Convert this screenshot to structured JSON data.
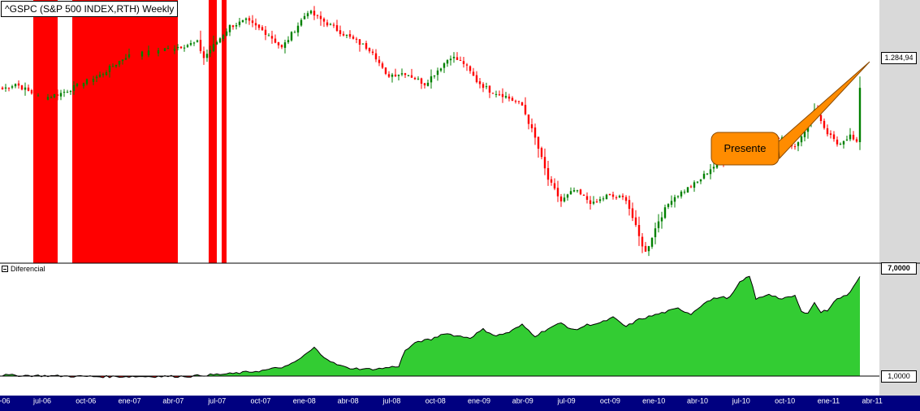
{
  "header": {
    "title": "^GSPC (S&P 500 INDEX,RTH) Weekly"
  },
  "callout": {
    "label": "Presente",
    "color": "#ff8c00"
  },
  "price_panel": {
    "last_price_label": "1.284,94"
  },
  "sub_panel": {
    "name": "Diferencial",
    "top_label": "7,0000",
    "bottom_label": "1,0000"
  },
  "time_axis": {
    "labels": [
      "-06",
      "jul-06",
      "oct-06",
      "ene-07",
      "abr-07",
      "jul-07",
      "oct-07",
      "ene-08",
      "abr-08",
      "jul-08",
      "oct-08",
      "ene-09",
      "abr-09",
      "jul-09",
      "oct-09",
      "ene-10",
      "abr-10",
      "jul-10",
      "oct-10",
      "ene-11",
      "abr-11"
    ]
  },
  "colors": {
    "up": "#008000",
    "down": "#ff0000",
    "area": "#33cc33",
    "axis_bar": "#000080",
    "right_strip": "#d9d9d9",
    "signal": "#ff0000"
  },
  "chart_data": [
    {
      "type": "candlestick",
      "title": "^GSPC (S&P 500 INDEX,RTH) Weekly",
      "x_start": "2006-04",
      "weeks": 265,
      "ylim": [
        650,
        1600
      ],
      "last_value": 1284.94,
      "anchors": [
        [
          0,
          1280
        ],
        [
          4,
          1300
        ],
        [
          12,
          1245
        ],
        [
          18,
          1265
        ],
        [
          30,
          1330
        ],
        [
          38,
          1400
        ],
        [
          48,
          1420
        ],
        [
          60,
          1450
        ],
        [
          62,
          1395
        ],
        [
          70,
          1510
        ],
        [
          75,
          1530
        ],
        [
          82,
          1480
        ],
        [
          86,
          1430
        ],
        [
          94,
          1565
        ],
        [
          100,
          1520
        ],
        [
          106,
          1475
        ],
        [
          114,
          1420
        ],
        [
          118,
          1330
        ],
        [
          124,
          1340
        ],
        [
          130,
          1300
        ],
        [
          138,
          1400
        ],
        [
          142,
          1375
        ],
        [
          146,
          1310
        ],
        [
          150,
          1275
        ],
        [
          154,
          1260
        ],
        [
          160,
          1220
        ],
        [
          164,
          1100
        ],
        [
          168,
          950
        ],
        [
          172,
          870
        ],
        [
          176,
          910
        ],
        [
          182,
          860
        ],
        [
          186,
          890
        ],
        [
          192,
          880
        ],
        [
          196,
          740
        ],
        [
          198,
          683
        ],
        [
          202,
          800
        ],
        [
          206,
          880
        ],
        [
          210,
          910
        ],
        [
          214,
          940
        ],
        [
          218,
          990
        ],
        [
          222,
          1020
        ],
        [
          226,
          1040
        ],
        [
          230,
          1060
        ],
        [
          236,
          1100
        ],
        [
          240,
          1110
        ],
        [
          244,
          1070
        ],
        [
          248,
          1150
        ],
        [
          250,
          1210
        ],
        [
          253,
          1130
        ],
        [
          257,
          1080
        ],
        [
          261,
          1110
        ],
        [
          263,
          1080
        ]
      ],
      "signal_zones_weeks": [
        [
          10,
          17
        ],
        [
          22,
          54
        ],
        [
          64,
          66
        ],
        [
          68,
          69
        ]
      ]
    },
    {
      "type": "area",
      "name": "Diferencial",
      "ylim": [
        1,
        7
      ],
      "anchors": [
        [
          0,
          1.05
        ],
        [
          30,
          0.97
        ],
        [
          58,
          0.99
        ],
        [
          62,
          1.05
        ],
        [
          70,
          1.12
        ],
        [
          80,
          1.3
        ],
        [
          88,
          1.55
        ],
        [
          92,
          2.0
        ],
        [
          96,
          2.55
        ],
        [
          98,
          2.2
        ],
        [
          102,
          1.7
        ],
        [
          106,
          1.45
        ],
        [
          112,
          1.38
        ],
        [
          116,
          1.4
        ],
        [
          122,
          1.55
        ],
        [
          124,
          2.4
        ],
        [
          128,
          2.9
        ],
        [
          132,
          3.0
        ],
        [
          136,
          3.35
        ],
        [
          140,
          3.2
        ],
        [
          144,
          3.1
        ],
        [
          148,
          3.55
        ],
        [
          152,
          3.2
        ],
        [
          156,
          3.4
        ],
        [
          160,
          3.8
        ],
        [
          164,
          3.2
        ],
        [
          168,
          3.6
        ],
        [
          172,
          3.9
        ],
        [
          176,
          3.5
        ],
        [
          180,
          3.8
        ],
        [
          184,
          3.9
        ],
        [
          188,
          4.2
        ],
        [
          192,
          3.7
        ],
        [
          196,
          4.1
        ],
        [
          200,
          4.3
        ],
        [
          204,
          4.5
        ],
        [
          208,
          4.7
        ],
        [
          212,
          4.4
        ],
        [
          216,
          5.0
        ],
        [
          220,
          5.3
        ],
        [
          224,
          5.3
        ],
        [
          227,
          6.1
        ],
        [
          230,
          6.5
        ],
        [
          232,
          5.2
        ],
        [
          236,
          5.5
        ],
        [
          240,
          5.2
        ],
        [
          244,
          5.4
        ],
        [
          246,
          4.5
        ],
        [
          248,
          4.5
        ],
        [
          250,
          5.0
        ],
        [
          252,
          4.5
        ],
        [
          254,
          4.6
        ],
        [
          256,
          5.1
        ],
        [
          258,
          5.3
        ],
        [
          260,
          5.4
        ],
        [
          262,
          5.9
        ],
        [
          264,
          6.5
        ]
      ]
    }
  ]
}
